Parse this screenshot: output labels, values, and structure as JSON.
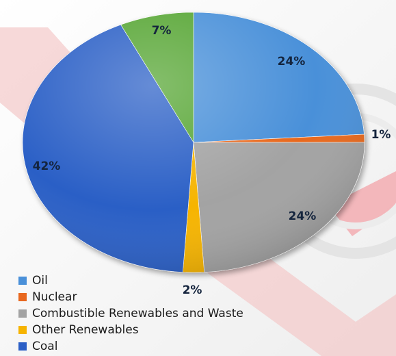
{
  "chart_data": {
    "type": "pie",
    "title": "",
    "slices": [
      {
        "label": "Oil",
        "value": 24,
        "data_label": "24%",
        "color": "#4a90d9"
      },
      {
        "label": "Nuclear",
        "value": 1,
        "data_label": "1%",
        "color": "#e8681f"
      },
      {
        "label": "Combustible Renewables and Waste",
        "value": 24,
        "data_label": "24%",
        "color": "#a3a3a3"
      },
      {
        "label": "Other Renewables",
        "value": 2,
        "data_label": "2%",
        "color": "#f6b400"
      },
      {
        "label": "Coal",
        "value": 42,
        "data_label": "42%",
        "color": "#2b5fc6"
      },
      {
        "label": "",
        "value": 7,
        "data_label": "7%",
        "color": "#55a533"
      }
    ],
    "legend": {
      "placement": "bottom-left",
      "entries": [
        {
          "label": "Oil",
          "color": "#4a90d9"
        },
        {
          "label": "Nuclear",
          "color": "#e8681f"
        },
        {
          "label": "Combustible Renewables and Waste",
          "color": "#a3a3a3"
        },
        {
          "label": "Other Renewables",
          "color": "#f6b400"
        },
        {
          "label": "Coal",
          "color": "#2b5fc6"
        }
      ]
    }
  }
}
